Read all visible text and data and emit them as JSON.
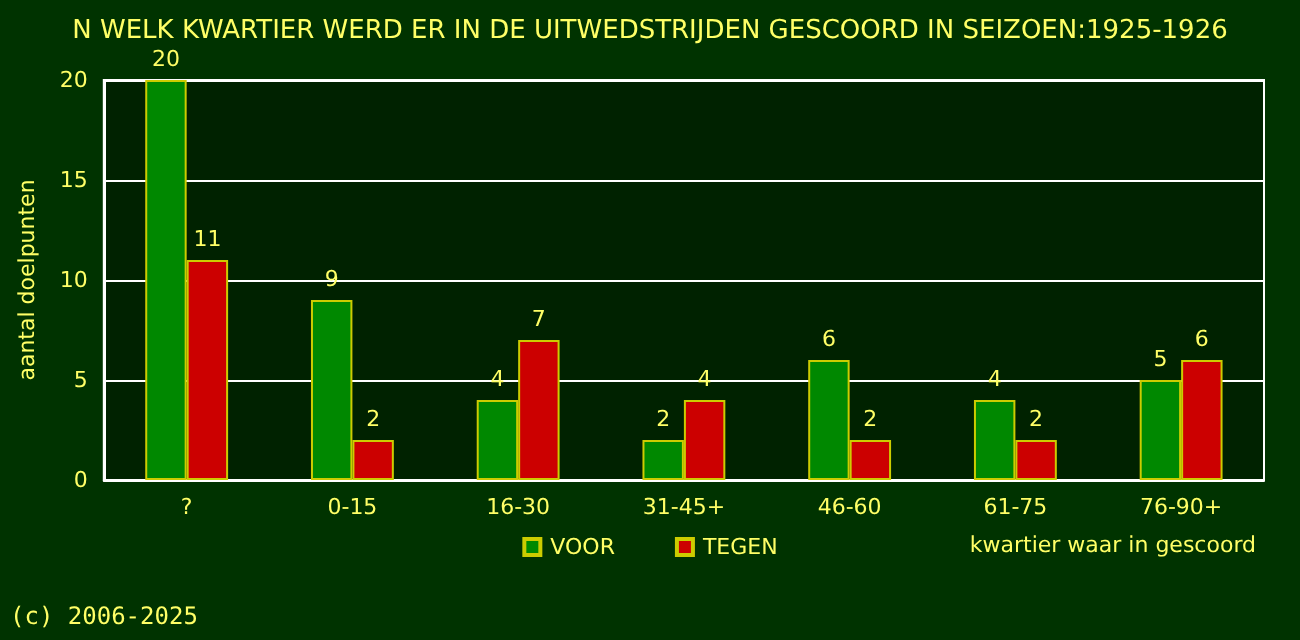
{
  "chart_data": {
    "type": "bar",
    "title": "N WELK KWARTIER WERD ER IN DE UITWEDSTRIJDEN GESCOORD IN SEIZOEN:1925-1926",
    "xlabel": "kwartier waar in gescoord",
    "ylabel": "aantal doelpunten",
    "categories": [
      "?",
      "0-15",
      "16-30",
      "31-45+",
      "46-60",
      "61-75",
      "76-90+"
    ],
    "series": [
      {
        "name": "VOOR",
        "color": "#008800",
        "values": [
          20,
          9,
          4,
          2,
          6,
          4,
          5
        ]
      },
      {
        "name": "TEGEN",
        "color": "#cc0000",
        "values": [
          11,
          2,
          7,
          4,
          2,
          2,
          6
        ]
      }
    ],
    "ylim": [
      0,
      20
    ],
    "yticks": [
      0,
      5,
      10,
      15,
      20
    ],
    "grid": "y",
    "legend": "bottom",
    "data_labels": true,
    "annotations": [
      "(c) 2006-2025"
    ]
  }
}
